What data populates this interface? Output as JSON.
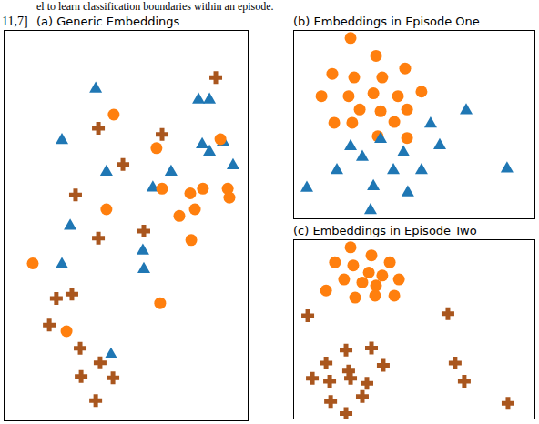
{
  "context_text": [
    "el to learn classification boundaries within an episode.",
    "11,7]"
  ],
  "chart_data": [
    {
      "type": "scatter",
      "title": "(a) Generic Embeddings",
      "xlim": [
        0,
        100
      ],
      "ylim": [
        0,
        100
      ],
      "tick_labels": false,
      "series": [
        {
          "color": "#1f77b4",
          "marker": "triangle",
          "x": [
            37.5,
            23.6,
            41.9,
            68.5,
            61.0,
            79.8,
            84.3,
            81.3,
            84.3,
            89.9,
            94.0,
            27.0,
            56.9,
            57.3,
            23.6,
            43.8
          ],
          "y": [
            85.4,
            72.2,
            64.1,
            64.1,
            60.0,
            82.6,
            82.6,
            71.1,
            69.2,
            71.8,
            65.7,
            50.2,
            43.8,
            39.1,
            40.3,
            17.1
          ]
        },
        {
          "color": "#ff7f0e",
          "marker": "circle",
          "x": [
            44.9,
            62.5,
            88.8,
            64.8,
            76.4,
            81.6,
            91.8,
            92.5,
            78.3,
            71.9,
            76.8,
            41.9,
            11.6,
            64.0,
            25.5
          ],
          "y": [
            78.5,
            69.9,
            72.2,
            59.5,
            58.3,
            59.5,
            59.5,
            57.2,
            54.2,
            52.5,
            46.3,
            54.2,
            40.3,
            30.1,
            22.9
          ]
        },
        {
          "color": "#a9561e",
          "marker": "plus",
          "x": [
            86.9,
            38.6,
            64.8,
            48.7,
            29.2,
            57.3,
            38.6,
            27.7,
            21.3,
            18.4,
            31.1,
            39.3,
            31.5,
            44.6,
            37.5
          ],
          "y": [
            88.0,
            75.0,
            73.4,
            65.7,
            57.9,
            48.6,
            46.8,
            32.4,
            31.3,
            24.5,
            18.5,
            14.8,
            11.3,
            10.9,
            5.1
          ]
        }
      ]
    },
    {
      "type": "scatter",
      "title": "(b) Embeddings in Episode One",
      "xlim": [
        0,
        100
      ],
      "ylim": [
        0,
        100
      ],
      "tick_labels": false,
      "series": [
        {
          "color": "#ff7f0e",
          "marker": "circle",
          "x": [
            23.5,
            34.1,
            46.2,
            15.9,
            25.0,
            36.7,
            11.4,
            22.7,
            33.0,
            43.2,
            53.0,
            27.3,
            36.0,
            47.0,
            16.7,
            24.2,
            41.7,
            34.8,
            47.0
          ],
          "y": [
            96.2,
            86.7,
            80.0,
            77.1,
            75.2,
            75.2,
            65.2,
            65.2,
            66.7,
            65.2,
            67.6,
            58.1,
            57.1,
            58.1,
            51.0,
            51.0,
            51.4,
            43.8,
            42.9
          ]
        },
        {
          "color": "#1f77b4",
          "marker": "triangle",
          "x": [
            71.6,
            56.8,
            60.6,
            23.5,
            36.0,
            45.5,
            28.4,
            41.3,
            53.0,
            17.8,
            33.0,
            47.3,
            5.3,
            31.8,
            88.6
          ],
          "y": [
            58.1,
            51.0,
            39.5,
            39.0,
            42.9,
            35.7,
            33.3,
            26.2,
            26.2,
            26.2,
            17.6,
            14.3,
            16.7,
            4.8,
            27.1
          ]
        }
      ]
    },
    {
      "type": "scatter",
      "title": "(c) Embeddings in Episode Two",
      "xlim": [
        0,
        100
      ],
      "ylim": [
        0,
        100
      ],
      "tick_labels": false,
      "series": [
        {
          "color": "#ff7f0e",
          "marker": "circle",
          "x": [
            23.5,
            32.2,
            17.0,
            24.6,
            39.8,
            31.1,
            36.7,
            43.6,
            20.8,
            28.4,
            34.1,
            13.3,
            25.4,
            33.7,
            41.7
          ],
          "y": [
            96.0,
            91.5,
            87.6,
            85.9,
            87.6,
            81.9,
            80.2,
            78.0,
            78.0,
            76.3,
            74.6,
            71.8,
            67.8,
            68.9,
            68.9
          ]
        },
        {
          "color": "#a9561e",
          "marker": "plus",
          "x": [
            5.7,
            64.0,
            21.6,
            32.2,
            13.3,
            22.7,
            37.1,
            67.0,
            7.6,
            14.8,
            23.5,
            30.3,
            28.4,
            15.2,
            21.6,
            70.8,
            89.0
          ],
          "y": [
            57.6,
            58.8,
            38.4,
            39.5,
            31.1,
            26.6,
            29.9,
            31.1,
            22.6,
            20.9,
            22.6,
            19.8,
            12.4,
            9.6,
            2.8,
            20.9,
            8.5
          ]
        }
      ]
    }
  ]
}
